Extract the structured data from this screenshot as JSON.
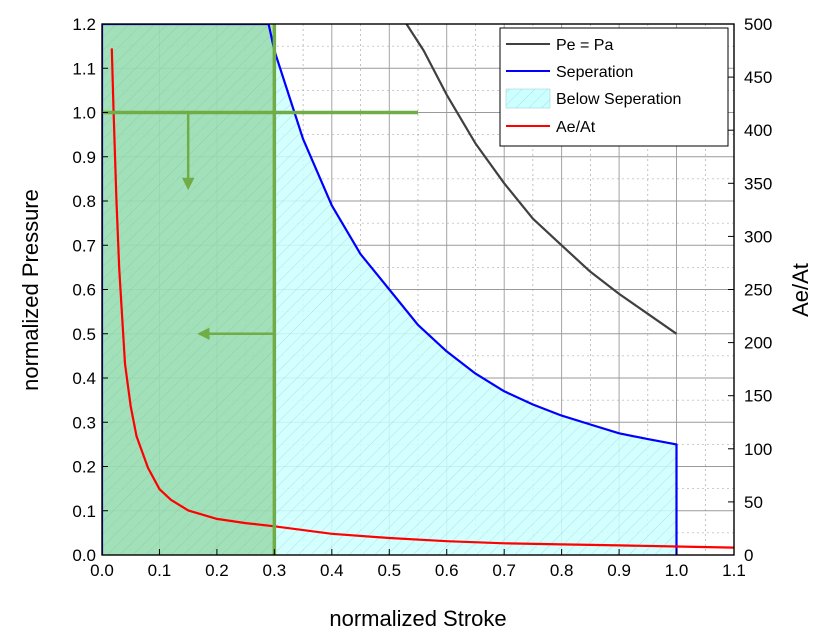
{
  "chart_data": {
    "type": "line",
    "xlabel": "normalized Stroke",
    "ylabel": "normalized Pressure",
    "y2label": "Ae/At",
    "xlim": [
      0.0,
      1.1
    ],
    "ylim": [
      0.0,
      1.2
    ],
    "y2lim": [
      0,
      500
    ],
    "x_ticks": [
      "0.0",
      "0.1",
      "0.2",
      "0.3",
      "0.4",
      "0.5",
      "0.6",
      "0.7",
      "0.8",
      "0.9",
      "1.0",
      "1.1"
    ],
    "y_ticks": [
      "0.0",
      "0.1",
      "0.2",
      "0.3",
      "0.4",
      "0.5",
      "0.6",
      "0.7",
      "0.8",
      "0.9",
      "1.0",
      "1.1",
      "1.2"
    ],
    "y2_ticks": [
      "0",
      "50",
      "100",
      "150",
      "200",
      "250",
      "300",
      "350",
      "400",
      "450",
      "500"
    ],
    "grid": true,
    "legend_position": "top-right",
    "series": [
      {
        "name": "Pe = Pa",
        "axis": "left",
        "color": "#404040",
        "x": [
          0.53,
          0.56,
          0.6,
          0.65,
          0.7,
          0.75,
          0.8,
          0.85,
          0.9,
          0.95,
          1.0
        ],
        "y": [
          1.2,
          1.14,
          1.04,
          0.93,
          0.84,
          0.76,
          0.7,
          0.64,
          0.59,
          0.545,
          0.5
        ]
      },
      {
        "name": "Seperation",
        "axis": "left",
        "color": "#0000ff",
        "x": [
          0.0,
          0.0,
          0.0,
          0.29,
          0.3,
          0.35,
          0.4,
          0.45,
          0.5,
          0.55,
          0.6,
          0.65,
          0.7,
          0.75,
          0.8,
          0.85,
          0.9,
          0.95,
          1.0,
          1.0
        ],
        "y": [
          0.0,
          1.2,
          1.2,
          1.2,
          1.14,
          0.94,
          0.79,
          0.68,
          0.6,
          0.52,
          0.46,
          0.41,
          0.37,
          0.34,
          0.315,
          0.295,
          0.275,
          0.262,
          0.25,
          0.0
        ]
      },
      {
        "name": "Below Seperation",
        "axis": "left",
        "color": "#ccffff",
        "x": [
          0.0,
          0.29,
          0.3,
          0.35,
          0.4,
          0.45,
          0.5,
          0.55,
          0.6,
          0.65,
          0.7,
          0.75,
          0.8,
          0.85,
          0.9,
          0.95,
          1.0,
          1.0,
          0.0
        ],
        "y": [
          1.2,
          1.2,
          1.14,
          0.94,
          0.79,
          0.68,
          0.6,
          0.52,
          0.46,
          0.41,
          0.37,
          0.34,
          0.315,
          0.295,
          0.275,
          0.262,
          0.25,
          0.0,
          0.0
        ]
      },
      {
        "name": "Ae/At",
        "axis": "right",
        "color": "#ff0000",
        "x": [
          0.017,
          0.02,
          0.025,
          0.03,
          0.04,
          0.05,
          0.06,
          0.08,
          0.1,
          0.12,
          0.15,
          0.2,
          0.25,
          0.3,
          0.4,
          0.5,
          0.6,
          0.7,
          0.8,
          0.9,
          1.0,
          1.1
        ],
        "y": [
          477,
          420,
          335,
          270,
          180,
          140,
          112,
          82,
          62,
          52,
          42,
          34,
          30,
          27,
          20,
          16,
          13,
          11,
          10,
          9,
          8,
          7
        ]
      }
    ],
    "annotations": {
      "shaded_region": {
        "x": [
          0.0,
          0.3
        ],
        "y": [
          0.0,
          1.2
        ],
        "color": "#66bb66"
      },
      "horizontal_line": {
        "y": 1.0,
        "x": [
          0.0,
          0.55
        ],
        "color": "#70ad47"
      },
      "vertical_line": {
        "x": 0.3,
        "y": [
          0.0,
          1.2
        ],
        "color": "#70ad47"
      },
      "arrow_down": {
        "x": 0.15,
        "y_from": 1.0,
        "y_to": 0.83,
        "color": "#70ad47"
      },
      "arrow_left": {
        "y": 0.5,
        "x_from": 0.3,
        "x_to": 0.17,
        "color": "#70ad47"
      }
    }
  }
}
